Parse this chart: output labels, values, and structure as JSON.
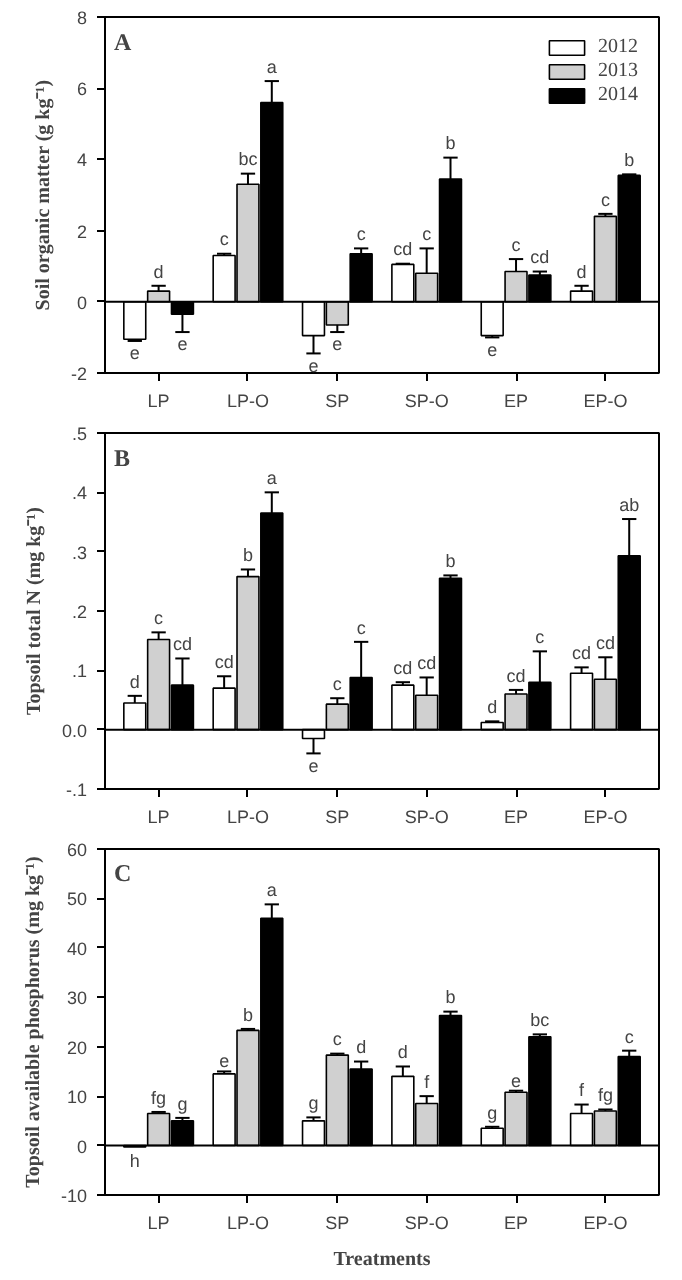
{
  "chart_data": [
    {
      "type": "bar",
      "annotations": [
        "A"
      ],
      "ylabel": "Soil organic matter (g kg⁻¹)",
      "categories": [
        "LP",
        "LP-O",
        "SP",
        "SP-O",
        "EP",
        "EP-O"
      ],
      "ylim": [
        -2,
        8
      ],
      "yticks": [
        -2,
        0,
        2,
        4,
        6,
        8
      ],
      "legend": "top right",
      "grid": false,
      "ref_lines": [
        {
          "axis": "y",
          "value": 0
        }
      ],
      "series": [
        {
          "name": "2012",
          "color": "#ffffff",
          "values": [
            -1.05,
            1.3,
            -0.95,
            1.05,
            -0.95,
            0.3
          ],
          "errors": [
            0.05,
            0.05,
            0.5,
            0.02,
            0.05,
            0.15
          ],
          "value_labels": [
            "e",
            "c",
            "e",
            "cd",
            "e",
            "d"
          ]
        },
        {
          "name": "2013",
          "color": "#d0d0d0",
          "values": [
            0.3,
            3.3,
            -0.65,
            0.8,
            0.85,
            2.4
          ],
          "errors": [
            0.15,
            0.3,
            0.2,
            0.7,
            0.35,
            0.07
          ],
          "value_labels": [
            "d",
            "bc",
            "e",
            "c",
            "c",
            "c"
          ]
        },
        {
          "name": "2014",
          "color": "#000000",
          "values": [
            -0.35,
            5.6,
            1.35,
            3.45,
            0.75,
            3.55
          ],
          "errors": [
            0.5,
            0.6,
            0.15,
            0.6,
            0.1,
            0.03
          ],
          "value_labels": [
            "e",
            "a",
            "c",
            "b",
            "cd",
            "b"
          ]
        }
      ]
    },
    {
      "type": "bar",
      "annotations": [
        "B"
      ],
      "ylabel": "Topsoil total N (mg kg⁻¹)",
      "categories": [
        "LP",
        "LP-O",
        "SP",
        "SP-O",
        "EP",
        "EP-O"
      ],
      "ylim": [
        -0.1,
        0.5
      ],
      "yticks": [
        {
          "value": -0.1,
          "label": "-.1"
        },
        {
          "value": 0,
          "label": "0.0"
        },
        {
          "value": 0.1,
          "label": ".1"
        },
        {
          "value": 0.2,
          "label": ".2"
        },
        {
          "value": 0.3,
          "label": ".3"
        },
        {
          "value": 0.4,
          "label": ".4"
        },
        {
          "value": 0.5,
          "label": ".5"
        }
      ],
      "grid": false,
      "ref_lines": [
        {
          "axis": "y",
          "value": 0
        }
      ],
      "series": [
        {
          "color": "#ffffff",
          "values": [
            0.045,
            0.07,
            -0.015,
            0.075,
            0.012,
            0.095
          ],
          "errors": [
            0.012,
            0.02,
            0.025,
            0.005,
            0.002,
            0.01
          ],
          "value_labels": [
            "d",
            "cd",
            "e",
            "cd",
            "d",
            "cd"
          ]
        },
        {
          "color": "#d0d0d0",
          "values": [
            0.152,
            0.258,
            0.043,
            0.058,
            0.06,
            0.085
          ],
          "errors": [
            0.012,
            0.012,
            0.01,
            0.03,
            0.007,
            0.037
          ],
          "value_labels": [
            "c",
            "b",
            "c",
            "cd",
            "cd",
            "cd"
          ]
        },
        {
          "color": "#000000",
          "values": [
            0.075,
            0.365,
            0.088,
            0.255,
            0.08,
            0.293
          ],
          "errors": [
            0.045,
            0.035,
            0.06,
            0.005,
            0.052,
            0.062
          ],
          "value_labels": [
            "cd",
            "a",
            "c",
            "b",
            "c",
            "ab"
          ]
        }
      ]
    },
    {
      "type": "bar",
      "annotations": [
        "C"
      ],
      "xlabel": "Treatments",
      "ylabel": "Topsoil available phosphorus (mg kg⁻¹)",
      "categories": [
        "LP",
        "LP-O",
        "SP",
        "SP-O",
        "EP",
        "EP-O"
      ],
      "ylim": [
        -10,
        60
      ],
      "yticks": [
        -10,
        0,
        10,
        20,
        30,
        40,
        50,
        60
      ],
      "grid": false,
      "ref_lines": [
        {
          "axis": "y",
          "value": 0
        }
      ],
      "series": [
        {
          "color": "#ffffff",
          "values": [
            -0.3,
            14.5,
            5,
            14,
            3.5,
            6.5
          ],
          "errors": [
            null,
            0.5,
            0.7,
            2,
            0.3,
            1.8
          ],
          "value_labels": [
            "h",
            "e",
            "g",
            "d",
            "g",
            "f"
          ]
        },
        {
          "color": "#d0d0d0",
          "values": [
            6.5,
            23.3,
            18.3,
            8.5,
            10.8,
            7
          ],
          "errors": [
            0.3,
            0.3,
            0.3,
            1.5,
            0.3,
            0.3
          ],
          "value_labels": [
            "fg",
            "b",
            "c",
            "f",
            "e",
            "fg"
          ]
        },
        {
          "color": "#000000",
          "values": [
            5,
            46,
            15.5,
            26.3,
            22,
            18
          ],
          "errors": [
            0.6,
            2.8,
            1.5,
            0.8,
            0.5,
            1.2
          ],
          "value_labels": [
            "g",
            "a",
            "d",
            "b",
            "bc",
            "c"
          ]
        }
      ]
    }
  ]
}
